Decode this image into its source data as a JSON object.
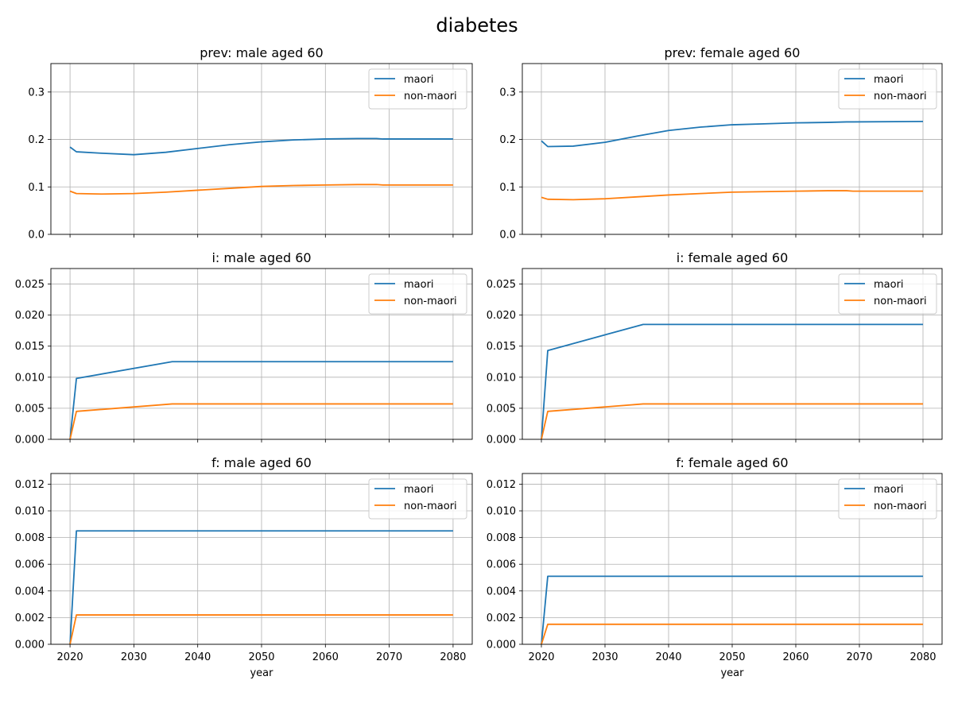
{
  "figure": {
    "title": "diabetes"
  },
  "colors": {
    "maori": "#1f77b4",
    "non_maori": "#ff7f0e",
    "grid": "#b0b0b0"
  },
  "chart_data": [
    {
      "type": "line",
      "title": "prev: male aged 60",
      "xlabel": "",
      "ylabel": "",
      "xlim": [
        2017,
        2083
      ],
      "ylim": [
        0,
        0.36
      ],
      "xticks": [
        2020,
        2030,
        2040,
        2050,
        2060,
        2070,
        2080
      ],
      "yticks": [
        0.0,
        0.1,
        0.2,
        0.3
      ],
      "ytick_labels": [
        "0.0",
        "0.1",
        "0.2",
        "0.3"
      ],
      "show_xtick_labels": false,
      "grid": true,
      "legend": "top-right",
      "series": [
        {
          "name": "maori",
          "x": [
            2020,
            2021,
            2025,
            2030,
            2035,
            2040,
            2045,
            2050,
            2055,
            2060,
            2065,
            2068,
            2069,
            2080
          ],
          "y": [
            0.184,
            0.174,
            0.171,
            0.168,
            0.173,
            0.181,
            0.189,
            0.195,
            0.199,
            0.201,
            0.202,
            0.202,
            0.201,
            0.201
          ]
        },
        {
          "name": "non-maori",
          "x": [
            2020,
            2021,
            2025,
            2030,
            2035,
            2040,
            2045,
            2050,
            2055,
            2060,
            2065,
            2068,
            2069,
            2080
          ],
          "y": [
            0.091,
            0.086,
            0.085,
            0.086,
            0.089,
            0.093,
            0.097,
            0.101,
            0.103,
            0.104,
            0.105,
            0.105,
            0.104,
            0.104
          ]
        }
      ]
    },
    {
      "type": "line",
      "title": "prev: female aged 60",
      "xlabel": "",
      "ylabel": "",
      "xlim": [
        2017,
        2083
      ],
      "ylim": [
        0,
        0.36
      ],
      "xticks": [
        2020,
        2030,
        2040,
        2050,
        2060,
        2070,
        2080
      ],
      "yticks": [
        0.0,
        0.1,
        0.2,
        0.3
      ],
      "ytick_labels": [
        "0.0",
        "0.1",
        "0.2",
        "0.3"
      ],
      "show_xtick_labels": false,
      "grid": true,
      "legend": "top-right",
      "series": [
        {
          "name": "maori",
          "x": [
            2020,
            2021,
            2025,
            2030,
            2035,
            2040,
            2045,
            2050,
            2055,
            2060,
            2065,
            2068,
            2069,
            2080
          ],
          "y": [
            0.197,
            0.185,
            0.186,
            0.194,
            0.207,
            0.219,
            0.226,
            0.231,
            0.233,
            0.235,
            0.236,
            0.237,
            0.237,
            0.238
          ]
        },
        {
          "name": "non-maori",
          "x": [
            2020,
            2021,
            2025,
            2030,
            2035,
            2040,
            2045,
            2050,
            2055,
            2060,
            2065,
            2068,
            2069,
            2080
          ],
          "y": [
            0.078,
            0.074,
            0.073,
            0.075,
            0.079,
            0.083,
            0.086,
            0.089,
            0.09,
            0.091,
            0.092,
            0.092,
            0.091,
            0.091
          ]
        }
      ]
    },
    {
      "type": "line",
      "title": "i: male aged 60",
      "xlabel": "",
      "ylabel": "",
      "xlim": [
        2017,
        2083
      ],
      "ylim": [
        0,
        0.0275
      ],
      "xticks": [
        2020,
        2030,
        2040,
        2050,
        2060,
        2070,
        2080
      ],
      "yticks": [
        0.0,
        0.005,
        0.01,
        0.015,
        0.02,
        0.025
      ],
      "ytick_labels": [
        "0.000",
        "0.005",
        "0.010",
        "0.015",
        "0.020",
        "0.025"
      ],
      "show_xtick_labels": false,
      "grid": true,
      "legend": "top-right",
      "series": [
        {
          "name": "maori",
          "x": [
            2020,
            2021,
            2036,
            2080
          ],
          "y": [
            0.0,
            0.0098,
            0.0125,
            0.0125
          ]
        },
        {
          "name": "non-maori",
          "x": [
            2020,
            2021,
            2036,
            2080
          ],
          "y": [
            0.0,
            0.0045,
            0.0057,
            0.0057
          ]
        }
      ]
    },
    {
      "type": "line",
      "title": "i: female aged 60",
      "xlabel": "",
      "ylabel": "",
      "xlim": [
        2017,
        2083
      ],
      "ylim": [
        0,
        0.0275
      ],
      "xticks": [
        2020,
        2030,
        2040,
        2050,
        2060,
        2070,
        2080
      ],
      "yticks": [
        0.0,
        0.005,
        0.01,
        0.015,
        0.02,
        0.025
      ],
      "ytick_labels": [
        "0.000",
        "0.005",
        "0.010",
        "0.015",
        "0.020",
        "0.025"
      ],
      "show_xtick_labels": false,
      "grid": true,
      "legend": "top-right",
      "series": [
        {
          "name": "maori",
          "x": [
            2020,
            2021,
            2036,
            2080
          ],
          "y": [
            0.0,
            0.0143,
            0.0185,
            0.0185
          ]
        },
        {
          "name": "non-maori",
          "x": [
            2020,
            2021,
            2036,
            2080
          ],
          "y": [
            0.0,
            0.0045,
            0.0057,
            0.0057
          ]
        }
      ]
    },
    {
      "type": "line",
      "title": "f: male aged 60",
      "xlabel": "year",
      "ylabel": "",
      "xlim": [
        2017,
        2083
      ],
      "ylim": [
        0,
        0.0128
      ],
      "xticks": [
        2020,
        2030,
        2040,
        2050,
        2060,
        2070,
        2080
      ],
      "yticks": [
        0.0,
        0.002,
        0.004,
        0.006,
        0.008,
        0.01,
        0.012
      ],
      "ytick_labels": [
        "0.000",
        "0.002",
        "0.004",
        "0.006",
        "0.008",
        "0.010",
        "0.012"
      ],
      "show_xtick_labels": true,
      "grid": true,
      "legend": "top-right",
      "series": [
        {
          "name": "maori",
          "x": [
            2020,
            2021,
            2080
          ],
          "y": [
            0.0,
            0.0085,
            0.0085
          ]
        },
        {
          "name": "non-maori",
          "x": [
            2020,
            2021,
            2080
          ],
          "y": [
            0.0,
            0.0022,
            0.0022
          ]
        }
      ]
    },
    {
      "type": "line",
      "title": "f: female aged 60",
      "xlabel": "year",
      "ylabel": "",
      "xlim": [
        2017,
        2083
      ],
      "ylim": [
        0,
        0.0128
      ],
      "xticks": [
        2020,
        2030,
        2040,
        2050,
        2060,
        2070,
        2080
      ],
      "yticks": [
        0.0,
        0.002,
        0.004,
        0.006,
        0.008,
        0.01,
        0.012
      ],
      "ytick_labels": [
        "0.000",
        "0.002",
        "0.004",
        "0.006",
        "0.008",
        "0.010",
        "0.012"
      ],
      "show_xtick_labels": true,
      "grid": true,
      "legend": "top-right",
      "series": [
        {
          "name": "maori",
          "x": [
            2020,
            2021,
            2080
          ],
          "y": [
            0.0,
            0.0051,
            0.0051
          ]
        },
        {
          "name": "non-maori",
          "x": [
            2020,
            2021,
            2080
          ],
          "y": [
            0.0,
            0.0015,
            0.0015
          ]
        }
      ]
    }
  ]
}
